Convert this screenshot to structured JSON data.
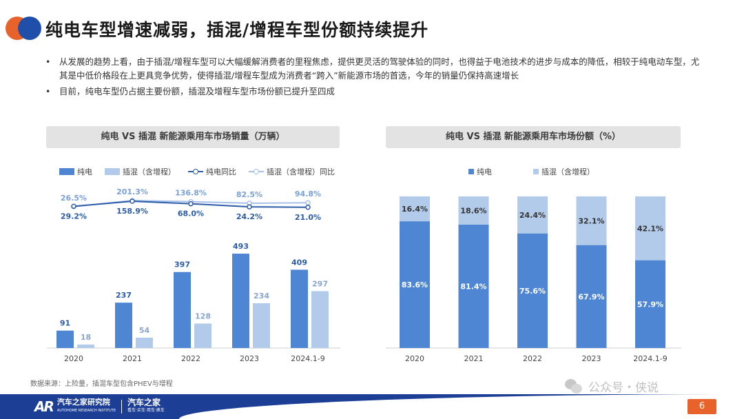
{
  "title": "纯电车型增速减弱，插混/增程车型份额持续提升",
  "bullets": [
    "从发展的趋势上看，由于插混/增程车型可以大幅缓解消费者的里程焦虑，提供更灵活的驾驶体验的同时，也得益于电池技术的进步与成本的降低，相较于纯电动车型，尤其是中低价格段在上更具竞争优势，使得插混/增程车型成为消费者“跨入”新能源市场的首选，今年的销量仍保持高速增长",
    "目前，纯电车型仍占据主要份额，插混及增程车型市场份额已提升至四成"
  ],
  "bullet_marker": "•",
  "colors": {
    "bev": "#4f86d4",
    "phev": "#b3cbeb",
    "bev_line": "#2b5aa8",
    "phev_line": "#a5bfe6",
    "accent": "#e8632b",
    "brand_blue": "#1c3f95"
  },
  "left_chart": {
    "header": "纯电 VS 插混 新能源乘用车市场销量（万辆）"
  },
  "right_chart": {
    "header": "纯电 VS 插混 新能源乘用车市场份额（%）"
  },
  "legend_left": [
    "纯电",
    "插混（含增程）",
    "纯电同比",
    "插混（含增程）同比"
  ],
  "legend_right": [
    "纯电",
    "插混（含增程）"
  ],
  "chart_data": [
    {
      "type": "bar",
      "title": "纯电 VS 插混 新能源乘用车市场销量（万辆）",
      "categories": [
        "2020",
        "2021",
        "2022",
        "2023",
        "2024.1-9"
      ],
      "series": [
        {
          "name": "纯电",
          "values": [
            91,
            237,
            397,
            493,
            409
          ]
        },
        {
          "name": "插混（含增程）",
          "values": [
            18,
            54,
            128,
            234,
            297
          ]
        }
      ],
      "line_series": [
        {
          "name": "纯电同比",
          "values": [
            29.2,
            158.9,
            68.0,
            24.2,
            21.0
          ],
          "labels": [
            "29.2%",
            "158.9%",
            "68.0%",
            "24.2%",
            "21.0%"
          ]
        },
        {
          "name": "插混（含增程）同比",
          "values": [
            26.5,
            201.3,
            136.8,
            82.5,
            94.8
          ],
          "labels": [
            "26.5%",
            "201.3%",
            "136.8%",
            "82.5%",
            "94.8%"
          ]
        }
      ],
      "ylim": [
        0,
        540
      ],
      "legend": "top"
    },
    {
      "type": "bar",
      "stacked": true,
      "title": "纯电 VS 插混 新能源乘用车市场份额（%）",
      "categories": [
        "2020",
        "2021",
        "2022",
        "2023",
        "2024.1-9"
      ],
      "series": [
        {
          "name": "纯电",
          "values": [
            83.6,
            81.4,
            75.6,
            67.9,
            57.9
          ]
        },
        {
          "name": "插混（含增程）",
          "values": [
            16.4,
            18.6,
            24.4,
            32.1,
            42.1
          ]
        }
      ],
      "ylim": [
        0,
        100
      ],
      "legend": "top"
    }
  ],
  "source": "数据来源：上险量，插混车型包含PHEV与增程",
  "watermark": "公众号・侠说",
  "footer": {
    "brand_mark": "AR",
    "brand_name": "汽车之家研究院",
    "brand_sub": "AUTOHOME RESEARCH INSTITUTE",
    "partner": "汽车之家",
    "partner_sub": "看车·买车·用车·换车"
  },
  "page_number": "6"
}
